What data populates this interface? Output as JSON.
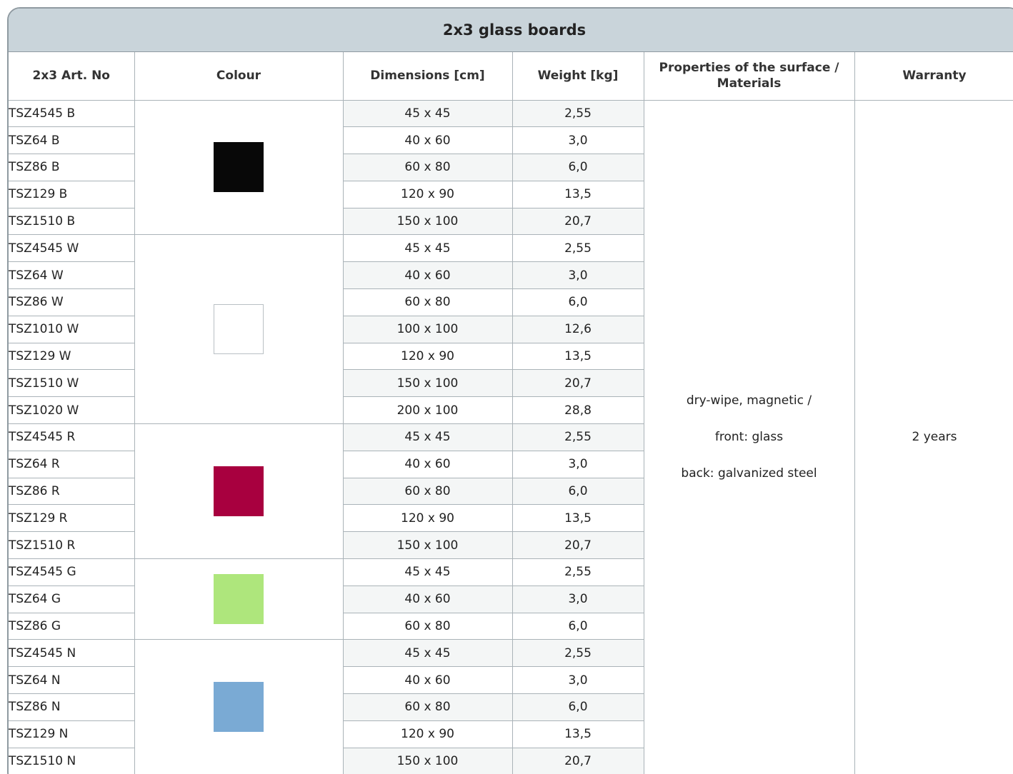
{
  "title": "2x3 glass boards",
  "headers": {
    "art_no": "2x3 Art. No",
    "colour": "Colour",
    "dimensions": "Dimensions [cm]",
    "weight": "Weight [kg]",
    "properties": "Properties of the surface / Materials",
    "warranty": "Warranty"
  },
  "colour_groups": [
    {
      "swatch_color": "#080808",
      "rows": [
        {
          "art": "TSZ4545 B",
          "dim": "45 x 45",
          "weight": "2,55"
        },
        {
          "art": "TSZ64 B",
          "dim": "40 x 60",
          "weight": "3,0"
        },
        {
          "art": "TSZ86 B",
          "dim": "60 x 80",
          "weight": "6,0"
        },
        {
          "art": "TSZ129 B",
          "dim": "120 x 90",
          "weight": "13,5"
        },
        {
          "art": "TSZ1510 B",
          "dim": "150 x 100",
          "weight": "20,7"
        }
      ]
    },
    {
      "swatch_color": "#ffffff",
      "rows": [
        {
          "art": "TSZ4545 W",
          "dim": "45 x 45",
          "weight": "2,55"
        },
        {
          "art": "TSZ64 W",
          "dim": "40 x 60",
          "weight": "3,0"
        },
        {
          "art": "TSZ86 W",
          "dim": "60 x 80",
          "weight": "6,0"
        },
        {
          "art": "TSZ1010 W",
          "dim": "100 x 100",
          "weight": "12,6"
        },
        {
          "art": "TSZ129 W",
          "dim": "120 x 90",
          "weight": "13,5"
        },
        {
          "art": "TSZ1510 W",
          "dim": "150 x 100",
          "weight": "20,7"
        },
        {
          "art": "TSZ1020 W",
          "dim": "200 x 100",
          "weight": "28,8"
        }
      ]
    },
    {
      "swatch_color": "#a8003f",
      "rows": [
        {
          "art": "TSZ4545 R",
          "dim": "45 x 45",
          "weight": "2,55"
        },
        {
          "art": "TSZ64 R",
          "dim": "40 x 60",
          "weight": "3,0"
        },
        {
          "art": "TSZ86 R",
          "dim": "60 x 80",
          "weight": "6,0"
        },
        {
          "art": "TSZ129 R",
          "dim": "120 x 90",
          "weight": "13,5"
        },
        {
          "art": "TSZ1510 R",
          "dim": "150 x 100",
          "weight": "20,7"
        }
      ]
    },
    {
      "swatch_color": "#aee67c",
      "rows": [
        {
          "art": "TSZ4545 G",
          "dim": "45 x 45",
          "weight": "2,55"
        },
        {
          "art": "TSZ64 G",
          "dim": "40 x 60",
          "weight": "3,0"
        },
        {
          "art": "TSZ86 G",
          "dim": "60 x 80",
          "weight": "6,0"
        }
      ]
    },
    {
      "swatch_color": "#7aaad4",
      "rows": [
        {
          "art": "TSZ4545 N",
          "dim": "45 x 45",
          "weight": "2,55"
        },
        {
          "art": "TSZ64 N",
          "dim": "40 x 60",
          "weight": "3,0"
        },
        {
          "art": "TSZ86 N",
          "dim": "60 x 80",
          "weight": "6,0"
        },
        {
          "art": "TSZ129 N",
          "dim": "120 x 90",
          "weight": "13,5"
        },
        {
          "art": "TSZ1510 N",
          "dim": "150 x 100",
          "weight": "20,7"
        }
      ]
    }
  ],
  "properties_lines": [
    "dry-wipe, magnetic /",
    "front: glass",
    "back: galvanized steel"
  ],
  "warranty_value": "2 years"
}
